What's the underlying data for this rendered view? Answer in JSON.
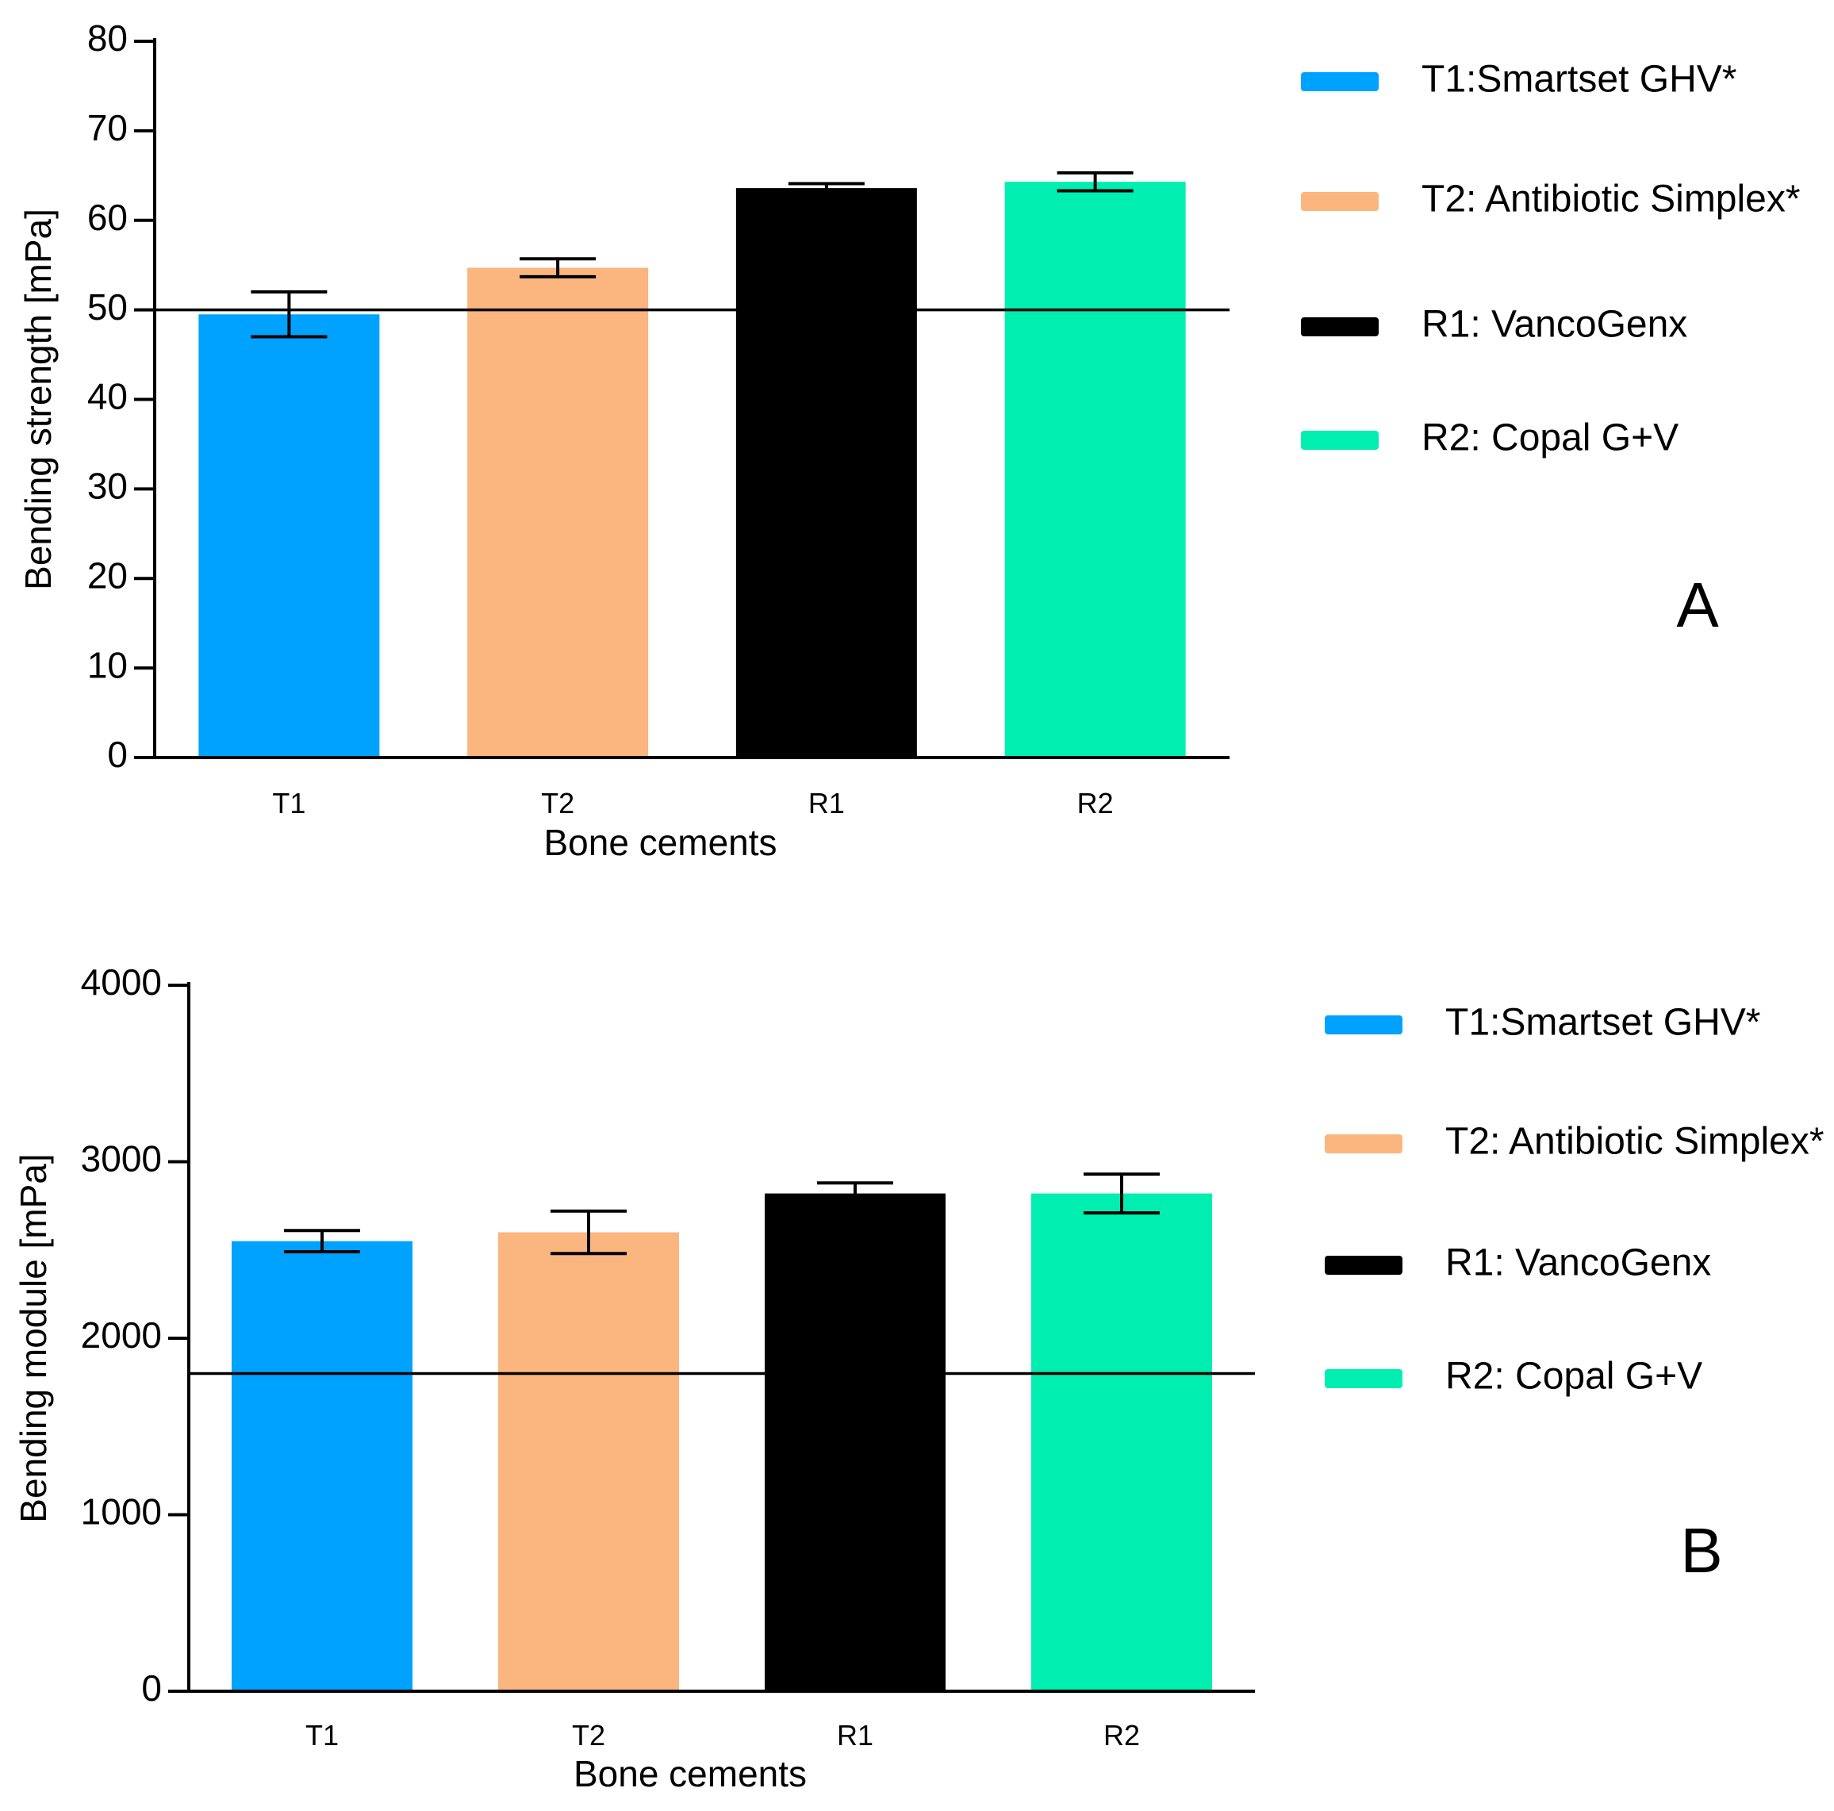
{
  "chart_data": [
    {
      "type": "bar",
      "panel_label": "A",
      "categories": [
        "T1",
        "T2",
        "R1",
        "R2"
      ],
      "values": [
        49.5,
        54.7,
        63.6,
        64.3
      ],
      "errors": [
        2.5,
        1.0,
        0.5,
        1.0
      ],
      "colors": [
        "#00a2ff",
        "#fbb57f",
        "#000000",
        "#00eeb0"
      ],
      "reference_line": 50,
      "xlabel": "Bone cements",
      "ylabel": "Bending strength [mPa]",
      "ylim": [
        0,
        80
      ],
      "yticks": [
        0,
        10,
        20,
        30,
        40,
        50,
        60,
        70,
        80
      ],
      "legend": [
        {
          "label": "T1:Smartset GHV*",
          "color": "#00a2ff"
        },
        {
          "label": "T2: Antibiotic Simplex*",
          "color": "#fbb57f"
        },
        {
          "label": "R1: VancoGenx",
          "color": "#000000"
        },
        {
          "label": "R2: Copal G+V",
          "color": "#00eeb0"
        }
      ]
    },
    {
      "type": "bar",
      "panel_label": "B",
      "categories": [
        "T1",
        "T2",
        "R1",
        "R2"
      ],
      "values": [
        2550,
        2600,
        2820,
        2820
      ],
      "errors": [
        60,
        120,
        60,
        110
      ],
      "colors": [
        "#00a2ff",
        "#fbb57f",
        "#000000",
        "#00eeb0"
      ],
      "reference_line": 1800,
      "xlabel": "Bone cements",
      "ylabel": "Bending module [mPa]",
      "ylim": [
        0,
        4000
      ],
      "yticks": [
        0,
        1000,
        2000,
        3000,
        4000
      ],
      "legend": [
        {
          "label": "T1:Smartset GHV*",
          "color": "#00a2ff"
        },
        {
          "label": "T2: Antibiotic Simplex*",
          "color": "#fbb57f"
        },
        {
          "label": "R1: VancoGenx",
          "color": "#000000"
        },
        {
          "label": "R2: Copal G+V",
          "color": "#00eeb0"
        }
      ]
    }
  ]
}
